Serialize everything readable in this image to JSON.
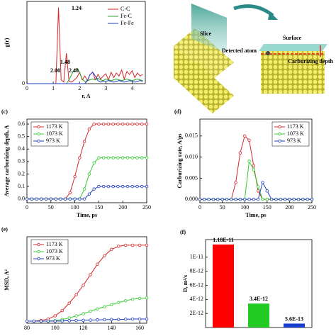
{
  "chart_data": [
    {
      "type": "line",
      "ylabel": "g(r)",
      "xlabel": "r, A",
      "x": [
        0,
        0.1,
        0.2,
        0.3,
        0.4,
        0.5,
        0.6,
        0.7,
        0.8,
        0.9,
        1.0,
        1.1,
        1.2,
        1.3,
        1.4,
        1.5,
        1.6,
        1.7,
        1.8,
        1.9,
        2.0,
        2.1,
        2.2,
        2.3,
        2.4,
        2.5,
        2.6,
        2.7,
        2.8,
        2.9,
        3.0,
        3.1,
        3.2,
        3.3,
        3.4,
        3.5,
        3.6,
        3.7,
        3.8,
        3.9,
        4.0,
        4.1,
        4.2,
        4.3,
        4.4
      ],
      "series": [
        {
          "name": "C-C",
          "color": "#d62728",
          "values": [
            0,
            0,
            0,
            0,
            0,
            0,
            0,
            0,
            0,
            0,
            0,
            0,
            1.0,
            0.05,
            0.02,
            0.4,
            0.03,
            0.02,
            0.05,
            0.08,
            0.15,
            0.05,
            0.1,
            0.04,
            0.12,
            0.15,
            0.05,
            0.12,
            0.06,
            0.1,
            0.13,
            0.05,
            0.15,
            0.08,
            0.14,
            0.1,
            0.18,
            0.06,
            0.16,
            0.12,
            0.17,
            0.08,
            0.14,
            0.1,
            0.12
          ]
        },
        {
          "name": "Fe-C",
          "color": "#2ca02c",
          "values": [
            0,
            0,
            0,
            0,
            0,
            0,
            0,
            0,
            0,
            0,
            0,
            0,
            0,
            0,
            0,
            0,
            0.05,
            0.12,
            0.18,
            0.2,
            0.15,
            0.06,
            0.03,
            0.04,
            0.05,
            0.06,
            0.05,
            0.07,
            0.05,
            0.04,
            0.06,
            0.05,
            0.04,
            0.05,
            0.06,
            0.05,
            0.04,
            0.05,
            0.06,
            0.05,
            0.04,
            0.05,
            0.06,
            0.05,
            0.04
          ]
        },
        {
          "name": "Fe-Fe",
          "color": "#1f3fbf",
          "values": [
            0,
            0,
            0,
            0,
            0,
            0,
            0,
            0,
            0,
            0,
            0,
            0,
            0,
            0,
            0,
            0,
            0,
            0,
            0,
            0,
            0,
            0,
            0,
            0.04,
            0.12,
            0.15,
            0.1,
            0.04,
            0.02,
            0.03,
            0.03,
            0.04,
            0.03,
            0.02,
            0.03,
            0.04,
            0.03,
            0.02,
            0.03,
            0.04,
            0.03,
            0.02,
            0.03,
            0.04,
            0.03
          ]
        }
      ],
      "annotations": [
        "1.24",
        "1.48",
        "2.00",
        "2.48"
      ],
      "xlim": [
        0,
        4.5
      ],
      "ylim": [
        0,
        1.08
      ],
      "xticks": [
        0,
        1,
        2,
        3,
        4
      ],
      "yticks": [
        0
      ],
      "markers": false,
      "legend": "upper right"
    },
    {
      "type": "line",
      "panel": "(c)",
      "ylabel": "Average carburizing depth, A",
      "xlabel": "Time, ps",
      "x": [
        0,
        10,
        20,
        30,
        40,
        50,
        60,
        70,
        80,
        90,
        100,
        110,
        120,
        130,
        140,
        150,
        160,
        170,
        180,
        190,
        200,
        210,
        220,
        230,
        240,
        250
      ],
      "series": [
        {
          "name": "1173 K",
          "color": "#d62728",
          "values": [
            0,
            0,
            0,
            0,
            0,
            0,
            0,
            0,
            0,
            0.05,
            0.18,
            0.33,
            0.46,
            0.56,
            0.6,
            0.6,
            0.6,
            0.6,
            0.6,
            0.6,
            0.6,
            0.6,
            0.6,
            0.6,
            0.6,
            0.6
          ]
        },
        {
          "name": "1073 K",
          "color": "#33cc33",
          "values": [
            0,
            0,
            0,
            0,
            0,
            0,
            0,
            0,
            0,
            0,
            0,
            0,
            0.08,
            0.2,
            0.29,
            0.33,
            0.33,
            0.33,
            0.33,
            0.33,
            0.33,
            0.33,
            0.33,
            0.33,
            0.33,
            0.33
          ]
        },
        {
          "name": "973 K",
          "color": "#1f3fbf",
          "values": [
            0,
            0,
            0,
            0,
            0,
            0,
            0,
            0,
            0,
            0,
            0,
            0,
            0,
            0.04,
            0.08,
            0.1,
            0.1,
            0.1,
            0.1,
            0.1,
            0.1,
            0.1,
            0.1,
            0.1,
            0.1,
            0.1
          ]
        }
      ],
      "xlim": [
        0,
        250
      ],
      "ylim": [
        -0.03,
        0.64
      ],
      "xticks": [
        0,
        50,
        100,
        150,
        200,
        250
      ],
      "yticks": [
        {
          "value": 0,
          "label": "0.0"
        },
        0.1,
        0.2,
        0.3,
        0.4,
        0.5,
        0.6
      ],
      "markers": true,
      "legend": "upper left"
    },
    {
      "type": "line",
      "panel": "(d)",
      "ylabel": "Carburizing rate, A/ps",
      "xlabel": "Time, ps",
      "x": [
        0,
        10,
        20,
        30,
        40,
        50,
        60,
        70,
        80,
        90,
        100,
        110,
        120,
        130,
        140,
        150,
        160,
        170,
        180,
        190,
        200,
        210,
        220,
        230,
        240,
        250
      ],
      "series": [
        {
          "name": "1173 K",
          "color": "#d62728",
          "values": [
            0,
            0,
            0,
            0,
            0,
            0,
            0,
            0,
            0.004,
            0.011,
            0.015,
            0.014,
            0.008,
            0.002,
            0,
            0,
            0,
            0,
            0,
            0,
            0,
            0,
            0,
            0,
            0,
            0
          ]
        },
        {
          "name": "1073 K",
          "color": "#33cc33",
          "values": [
            0,
            0,
            0,
            0,
            0,
            0,
            0,
            0,
            0,
            0,
            0,
            0.009,
            0.007,
            0.003,
            0,
            0,
            0,
            0,
            0,
            0,
            0,
            0,
            0,
            0,
            0,
            0
          ]
        },
        {
          "name": "973 K",
          "color": "#1f3fbf",
          "values": [
            0,
            0,
            0,
            0,
            0,
            0,
            0,
            0,
            0,
            0,
            0,
            0,
            0,
            0,
            0.004,
            0.002,
            0,
            0,
            0,
            0,
            0,
            0,
            0,
            0,
            0,
            0
          ]
        }
      ],
      "xlim": [
        0,
        250
      ],
      "ylim": [
        -0.0008,
        0.019
      ],
      "xticks": [
        0,
        50,
        100,
        150,
        200,
        250
      ],
      "yticks": [
        {
          "value": 0,
          "label": "0.000"
        },
        0.005,
        {
          "value": 0.01,
          "label": "0.010"
        },
        0.015
      ],
      "markers": true,
      "legend": "upper right"
    },
    {
      "type": "line",
      "panel": "(e)",
      "ylabel": "MSD, A²",
      "x": [
        80,
        85,
        90,
        95,
        100,
        105,
        110,
        115,
        120,
        125,
        130,
        135,
        140,
        145,
        150,
        155,
        160,
        165
      ],
      "series": [
        {
          "name": "1173 K",
          "color": "#d62728",
          "values": [
            0,
            0,
            0.003,
            0.01,
            0.025,
            0.05,
            0.085,
            0.125,
            0.17,
            0.22,
            0.27,
            0.31,
            0.34,
            0.355,
            0.36,
            0.36,
            0.36,
            0.36
          ]
        },
        {
          "name": "1073 K",
          "color": "#33cc33",
          "values": [
            0,
            0,
            0,
            0,
            0.002,
            0.008,
            0.015,
            0.025,
            0.035,
            0.047,
            0.058,
            0.068,
            0.078,
            0.088,
            0.097,
            0.104,
            0.108,
            0.11
          ]
        },
        {
          "name": "973 K",
          "color": "#1f3fbf",
          "values": [
            0,
            0,
            0,
            0,
            0,
            0.001,
            0.002,
            0.003,
            0.004,
            0.005,
            0.006,
            0.007,
            0.008,
            0.008,
            0.009,
            0.01,
            0.01,
            0.01
          ]
        }
      ],
      "xlim": [
        80,
        165
      ],
      "ylim": [
        -0.01,
        0.4
      ],
      "xticks": [
        80,
        100,
        120,
        140,
        160
      ],
      "yticks": [],
      "markers": true,
      "legend": "upper left"
    },
    {
      "type": "bar",
      "panel": "(f)",
      "ylabel": "D, m²/s",
      "categories": [
        null,
        null,
        null
      ],
      "values": [
        1.18e-11,
        3.4e-12,
        5.6e-13
      ],
      "value_labels": [
        "1.18E-11",
        "3.4E-12",
        "5.6E-13"
      ],
      "colors": [
        "#ff0000",
        "#22cc22",
        "#1a3fcc"
      ],
      "ylim": [
        0,
        1.25e-11
      ],
      "yticks": [
        {
          "value": 2e-12,
          "label": "2E-12"
        },
        {
          "value": 4e-12,
          "label": "4E-12"
        },
        {
          "value": 6e-12,
          "label": "6E-12"
        },
        {
          "value": 8e-12,
          "label": "8E-12"
        },
        {
          "value": 1e-11,
          "label": "1E-11"
        }
      ]
    }
  ],
  "illustration": {
    "labels": [
      "Slice",
      "Surface",
      "Detected atom",
      "Carburizing depth"
    ]
  }
}
